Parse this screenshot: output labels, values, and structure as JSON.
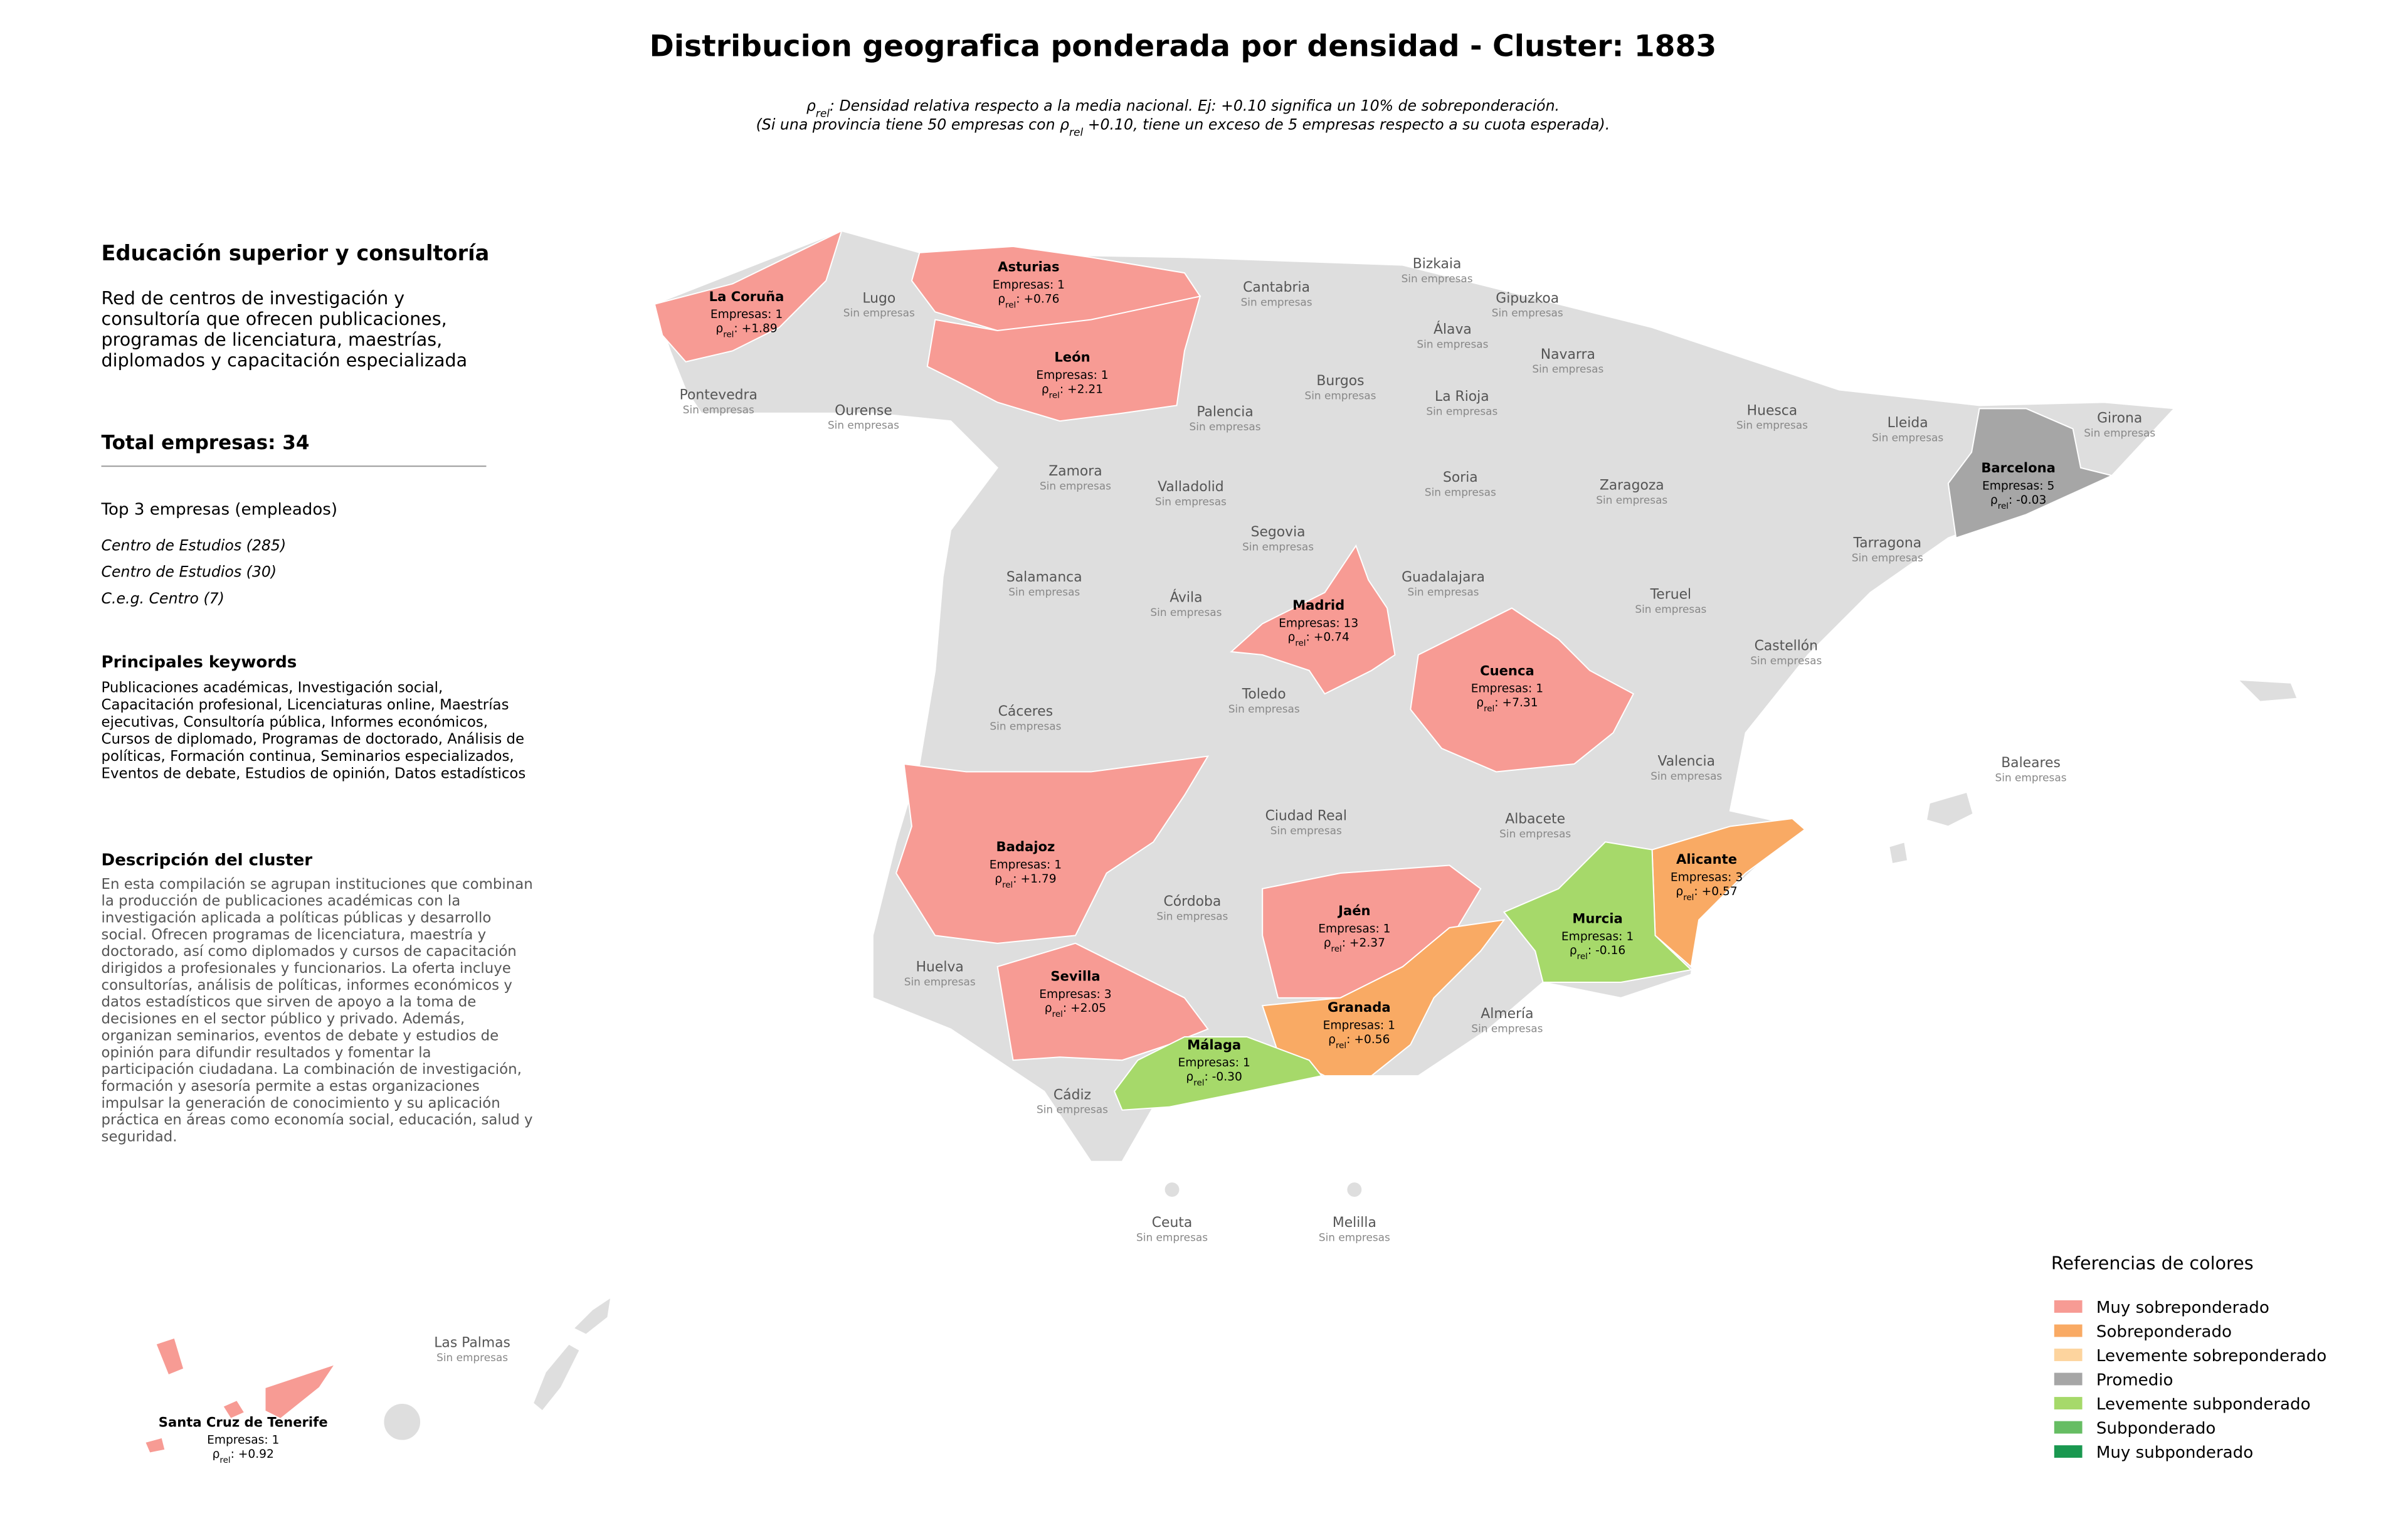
{
  "header": {
    "title": "Distribucion geografica ponderada por densidad - Cluster: 1883",
    "subtitle_lines": [
      [
        {
          "text": "ρ"
        },
        {
          "text": "rel",
          "sub": true
        },
        {
          "text": ": Densidad relativa respecto a la media nacional. Ej: +0.10 significa un 10% de sobreponderación."
        }
      ],
      [
        {
          "text": "(Si una provincia tiene 50 empresas con "
        },
        {
          "text": "ρ"
        },
        {
          "text": "rel",
          "sub": true
        },
        {
          "text": " +0.10, tiene un exceso de 5 empresas respecto a su cuota esperada)."
        }
      ]
    ]
  },
  "panel": {
    "title": "Educación superior y consultoría",
    "summary_lines": [
      "Red de centros de investigación y",
      "consultoría que ofrecen publicaciones,",
      "programas de licenciatura, maestrías,",
      "diplomados y capacitación especializada"
    ],
    "total": "Total empresas: 34",
    "top_heading": "Top 3 empresas (empleados)",
    "top_companies": [
      "Centro de Estudios (285)",
      "Centro de Estudios (30)",
      "C.e.g. Centro (7)"
    ],
    "keywords_heading": "Principales keywords",
    "keywords_lines": [
      "Publicaciones académicas, Investigación social,",
      "Capacitación profesional, Licenciaturas online, Maestrías",
      "ejecutivas, Consultoría pública, Informes económicos,",
      "Cursos de diplomado, Programas de doctorado, Análisis de",
      "políticas, Formación continua, Seminarios especializados,",
      "Eventos de debate, Estudios de opinión, Datos estadísticos"
    ],
    "description_heading": "Descripción del cluster",
    "description_lines": [
      "En esta compilación se agrupan instituciones que combinan",
      "la producción de publicaciones académicas con la",
      "investigación aplicada a políticas públicas y desarrollo",
      "social. Ofrecen programas de licenciatura, maestría y",
      "doctorado, así como diplomados y cursos de capacitación",
      "dirigidos a profesionales y funcionarios. La oferta incluye",
      "consultorías, análisis de políticas, informes económicos y",
      "datos estadísticos que sirven de apoyo a la toma de",
      "decisiones en el sector público y privado. Además,",
      "organizan seminarios, eventos de debate y estudios de",
      "opinión para difundir resultados y fomentar la",
      "participación ciudadana. La combinación de investigación,",
      "formación y asesoría permite a estas organizaciones",
      "impulsar la generación de conocimiento y su aplicación",
      "práctica en áreas como economía social, educación, salud y",
      "seguridad."
    ]
  },
  "map": {
    "rho_prefix": [
      {
        "text": "ρ"
      },
      {
        "text": "rel",
        "sub": true
      },
      {
        "text": ": "
      }
    ],
    "provinces": [
      {
        "name": "La Coruña",
        "color": "#f79b94",
        "empresas": "Empresas: 1",
        "rho": "+1.89"
      },
      {
        "name": "Lugo",
        "note": "Sin empresas"
      },
      {
        "name": "Pontevedra",
        "note": "Sin empresas"
      },
      {
        "name": "Ourense",
        "note": "Sin empresas"
      },
      {
        "name": "Asturias",
        "color": "#f79b94",
        "empresas": "Empresas: 1",
        "rho": "+0.76"
      },
      {
        "name": "León",
        "color": "#f79b94",
        "empresas": "Empresas: 1",
        "rho": "+2.21"
      },
      {
        "name": "Cantabria",
        "note": "Sin empresas"
      },
      {
        "name": "Bizkaia",
        "note": "Sin empresas"
      },
      {
        "name": "Gipuzkoa",
        "note": "Sin empresas"
      },
      {
        "name": "Álava",
        "note": "Sin empresas"
      },
      {
        "name": "Navarra",
        "note": "Sin empresas"
      },
      {
        "name": "Burgos",
        "note": "Sin empresas"
      },
      {
        "name": "La Rioja",
        "note": "Sin empresas"
      },
      {
        "name": "Palencia",
        "note": "Sin empresas"
      },
      {
        "name": "Huesca",
        "note": "Sin empresas"
      },
      {
        "name": "Lleida",
        "note": "Sin empresas"
      },
      {
        "name": "Girona",
        "note": "Sin empresas"
      },
      {
        "name": "Barcelona",
        "color": "#a6a6a6",
        "empresas": "Empresas: 5",
        "rho": "-0.03"
      },
      {
        "name": "Zamora",
        "note": "Sin empresas"
      },
      {
        "name": "Valladolid",
        "note": "Sin empresas"
      },
      {
        "name": "Soria",
        "note": "Sin empresas"
      },
      {
        "name": "Zaragoza",
        "note": "Sin empresas"
      },
      {
        "name": "Tarragona",
        "note": "Sin empresas"
      },
      {
        "name": "Segovia",
        "note": "Sin empresas"
      },
      {
        "name": "Salamanca",
        "note": "Sin empresas"
      },
      {
        "name": "Guadalajara",
        "note": "Sin empresas"
      },
      {
        "name": "Madrid",
        "color": "#f79b94",
        "empresas": "Empresas: 13",
        "rho": "+0.74"
      },
      {
        "name": "Ávila",
        "note": "Sin empresas"
      },
      {
        "name": "Teruel",
        "note": "Sin empresas"
      },
      {
        "name": "Castellón",
        "note": "Sin empresas"
      },
      {
        "name": "Cuenca",
        "color": "#f79b94",
        "empresas": "Empresas: 1",
        "rho": "+7.31"
      },
      {
        "name": "Toledo",
        "note": "Sin empresas"
      },
      {
        "name": "Cáceres",
        "note": "Sin empresas"
      },
      {
        "name": "Valencia",
        "note": "Sin empresas"
      },
      {
        "name": "Baleares",
        "note": "Sin empresas"
      },
      {
        "name": "Ciudad Real",
        "note": "Sin empresas"
      },
      {
        "name": "Albacete",
        "note": "Sin empresas"
      },
      {
        "name": "Badajoz",
        "color": "#f79b94",
        "empresas": "Empresas: 1",
        "rho": "+1.79"
      },
      {
        "name": "Alicante",
        "color": "#f9aa64",
        "empresas": "Empresas: 3",
        "rho": "+0.57"
      },
      {
        "name": "Córdoba",
        "note": "Sin empresas"
      },
      {
        "name": "Jaén",
        "color": "#f79b94",
        "empresas": "Empresas: 1",
        "rho": "+2.37"
      },
      {
        "name": "Murcia",
        "color": "#a6d96a",
        "empresas": "Empresas: 1",
        "rho": "-0.16"
      },
      {
        "name": "Huelva",
        "note": "Sin empresas"
      },
      {
        "name": "Sevilla",
        "color": "#f79b94",
        "empresas": "Empresas: 3",
        "rho": "+2.05"
      },
      {
        "name": "Almería",
        "note": "Sin empresas"
      },
      {
        "name": "Granada",
        "color": "#f9aa64",
        "empresas": "Empresas: 1",
        "rho": "+0.56"
      },
      {
        "name": "Málaga",
        "color": "#a6d96a",
        "empresas": "Empresas: 1",
        "rho": "-0.30"
      },
      {
        "name": "Cádiz",
        "note": "Sin empresas"
      },
      {
        "name": "Ceuta",
        "note": "Sin empresas"
      },
      {
        "name": "Melilla",
        "note": "Sin empresas"
      },
      {
        "name": "Las Palmas",
        "note": "Sin empresas"
      },
      {
        "name": "Santa Cruz de Tenerife",
        "color": "#f79b94",
        "empresas": "Empresas: 1",
        "rho": "+0.92"
      }
    ]
  },
  "legend": {
    "title": "Referencias de colores",
    "items": [
      {
        "label": "Muy sobreponderado",
        "color": "#f79b94"
      },
      {
        "label": "Sobreponderado",
        "color": "#f9aa64"
      },
      {
        "label": "Levemente sobreponderado",
        "color": "#fdd49e"
      },
      {
        "label": "Promedio",
        "color": "#a6a6a6"
      },
      {
        "label": "Levemente subponderado",
        "color": "#a6d96a"
      },
      {
        "label": "Subponderado",
        "color": "#66bd63"
      },
      {
        "label": "Muy subponderado",
        "color": "#1a9850"
      }
    ]
  }
}
